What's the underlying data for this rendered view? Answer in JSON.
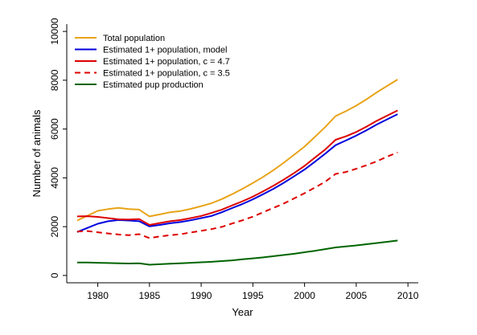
{
  "chart_data": {
    "type": "line",
    "xlabel": "Year",
    "ylabel": "Number of animals",
    "xlim": [
      1977,
      2011
    ],
    "ylim": [
      -300,
      10300
    ],
    "x_ticks": [
      1980,
      1985,
      1990,
      1995,
      2000,
      2005,
      2010
    ],
    "y_ticks": [
      0,
      2000,
      4000,
      6000,
      8000,
      10000
    ],
    "grid": false,
    "legend_position": "top-left",
    "x": [
      1978,
      1979,
      1980,
      1981,
      1982,
      1983,
      1984,
      1985,
      1986,
      1987,
      1988,
      1989,
      1990,
      1991,
      1992,
      1993,
      1994,
      1995,
      1996,
      1997,
      1998,
      1999,
      2000,
      2001,
      2002,
      2003,
      2004,
      2005,
      2006,
      2007,
      2008,
      2009
    ],
    "series": [
      {
        "name": "Total population",
        "color": "#E8A317",
        "dash": "solid",
        "values": [
          2250,
          2450,
          2650,
          2720,
          2770,
          2720,
          2700,
          2420,
          2500,
          2590,
          2640,
          2730,
          2840,
          2960,
          3130,
          3330,
          3550,
          3790,
          4040,
          4320,
          4620,
          4950,
          5280,
          5680,
          6080,
          6530,
          6730,
          6960,
          7220,
          7510,
          7770,
          8030
        ]
      },
      {
        "name": "Estimated 1+ population, model",
        "color": "#0000DD",
        "dash": "solid",
        "values": [
          1780,
          1950,
          2120,
          2220,
          2270,
          2250,
          2220,
          2010,
          2070,
          2140,
          2190,
          2260,
          2350,
          2440,
          2590,
          2760,
          2930,
          3120,
          3330,
          3550,
          3800,
          4070,
          4340,
          4660,
          4990,
          5340,
          5530,
          5730,
          5950,
          6190,
          6400,
          6610
        ]
      },
      {
        "name": "Estimated 1+ population, c = 4.7",
        "color": "#DD0000",
        "dash": "solid",
        "values": [
          2420,
          2430,
          2400,
          2350,
          2300,
          2290,
          2310,
          2070,
          2150,
          2220,
          2270,
          2350,
          2440,
          2560,
          2700,
          2870,
          3040,
          3230,
          3450,
          3680,
          3930,
          4200,
          4490,
          4830,
          5160,
          5560,
          5700,
          5880,
          6100,
          6340,
          6550,
          6760
        ]
      },
      {
        "name": "Estimated 1+ population, c = 3.5",
        "color": "#DD0000",
        "dash": "dashed",
        "values": [
          1800,
          1820,
          1770,
          1720,
          1680,
          1650,
          1690,
          1530,
          1600,
          1650,
          1690,
          1760,
          1830,
          1900,
          1990,
          2130,
          2260,
          2410,
          2590,
          2770,
          2950,
          3160,
          3370,
          3600,
          3840,
          4160,
          4240,
          4370,
          4520,
          4680,
          4870,
          5040
        ]
      },
      {
        "name": "Estimated pup production",
        "color": "#006400",
        "dash": "solid",
        "values": [
          530,
          530,
          520,
          510,
          500,
          490,
          500,
          440,
          460,
          480,
          500,
          520,
          540,
          560,
          590,
          620,
          660,
          700,
          740,
          790,
          840,
          890,
          950,
          1010,
          1080,
          1150,
          1190,
          1230,
          1280,
          1330,
          1380,
          1430
        ]
      }
    ]
  }
}
